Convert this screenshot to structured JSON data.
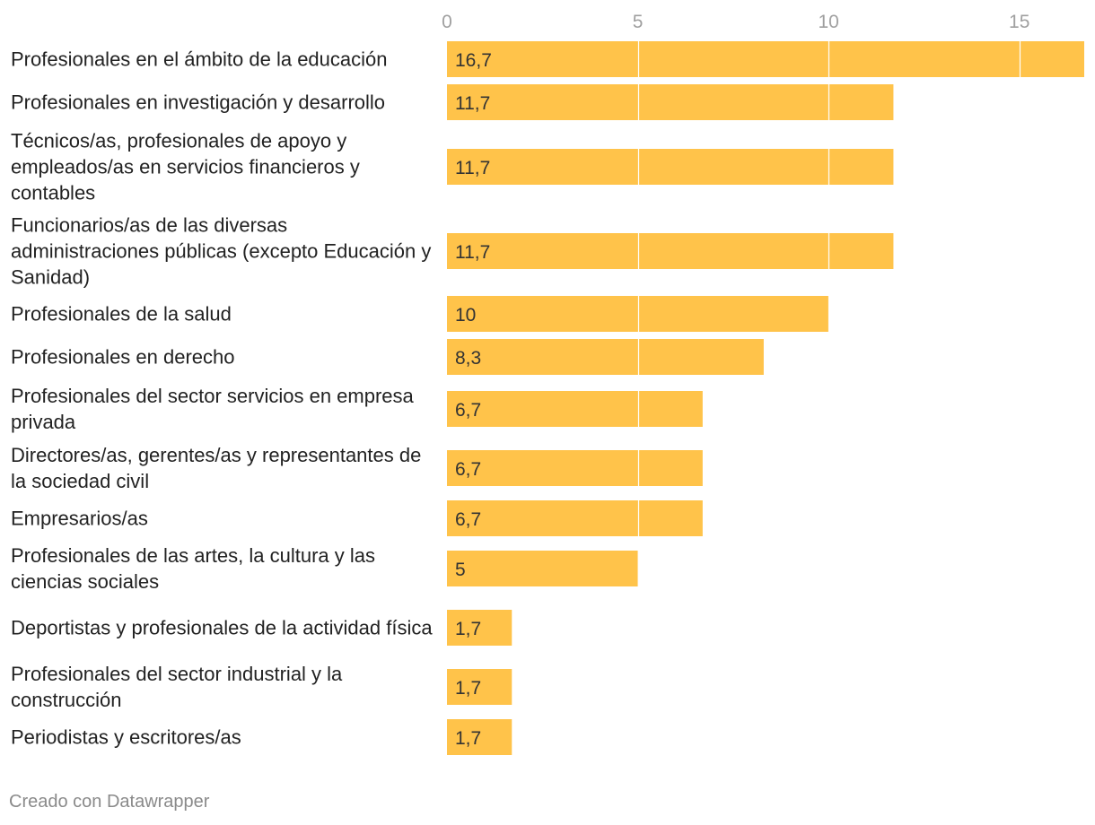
{
  "chart_data": {
    "type": "bar",
    "orientation": "horizontal",
    "categories": [
      "Profesionales en el ámbito de la educación",
      "Profesionales en investigación y desarrollo",
      "Técnicos/as, profesionales de apoyo y empleados/as en servicios financieros y contables",
      "Funcionarios/as de las diversas administraciones públicas (excepto Educación y Sanidad)",
      "Profesionales de la salud",
      "Profesionales en derecho",
      "Profesionales del sector servicios en empresa privada",
      "Directores/as, gerentes/as y representantes de la sociedad civil",
      "Empresarios/as",
      "Profesionales de las artes, la cultura y las ciencias sociales",
      "Deportistas y profesionales de la actividad física",
      "Profesionales del sector industrial y la construcción",
      "Periodistas y escritores/as"
    ],
    "values": [
      16.7,
      11.7,
      11.7,
      11.7,
      10,
      8.3,
      6.7,
      6.7,
      6.7,
      5,
      1.7,
      1.7,
      1.7
    ],
    "value_labels": [
      "16,7",
      "11,7",
      "11,7",
      "11,7",
      "10",
      "8,3",
      "6,7",
      "6,7",
      "6,7",
      "5",
      "1,7",
      "1,7",
      "1,7"
    ],
    "x_ticks": [
      0,
      5,
      10,
      15
    ],
    "xlim": [
      0,
      16.7
    ],
    "grid": true,
    "bar_color": "#ffc34a",
    "gridline_color": "#ffffff",
    "axis_position": "top",
    "title": "",
    "xlabel": "",
    "ylabel": ""
  },
  "footer": {
    "credit": "Creado con Datawrapper"
  }
}
